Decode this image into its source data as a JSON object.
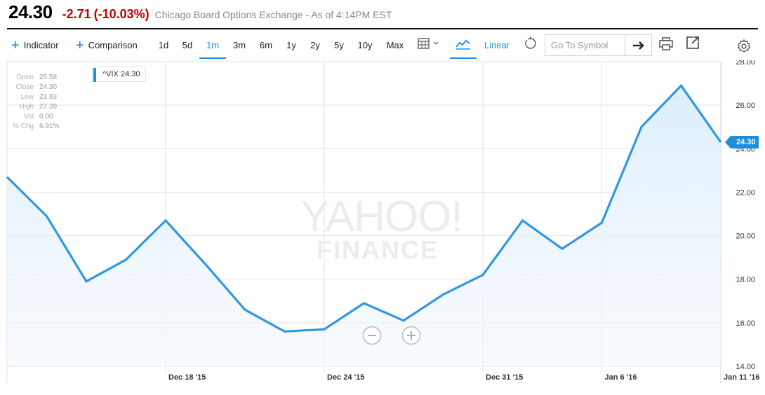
{
  "header": {
    "price": "24.30",
    "change": "-2.71",
    "change_pct": "(-10.03%)",
    "exchange": "Chicago Board Options Exchange - As of 4:14PM EST",
    "colors": {
      "negative": "#c00000",
      "price": "#000000"
    }
  },
  "toolbar": {
    "indicator_label": "Indicator",
    "comparison_label": "Comparison",
    "ranges": [
      "1d",
      "5d",
      "1m",
      "3m",
      "6m",
      "1y",
      "2y",
      "5y",
      "10y",
      "Max"
    ],
    "active_range": "1m",
    "scale_label": "Linear",
    "symbol_placeholder": "Go To Symbol",
    "icons": [
      "plus-icon",
      "calendar-icon",
      "chevron-down-icon",
      "line-chart-icon",
      "undo-icon",
      "arrow-right-icon",
      "print-icon",
      "external-link-icon",
      "gear-icon"
    ],
    "accent_color": "#1d8fdb"
  },
  "legend": {
    "label": "^VIX 24.30"
  },
  "ohlc": {
    "rows": [
      {
        "k": "Open",
        "v": "25.58"
      },
      {
        "k": "Close",
        "v": "24.30"
      },
      {
        "k": "Low",
        "v": "23.83"
      },
      {
        "k": "High",
        "v": "27.39"
      },
      {
        "k": "Vol",
        "v": "0.00"
      },
      {
        "k": "% Chg",
        "v": "6.91%"
      }
    ]
  },
  "watermark": {
    "line1": "YAHOO!",
    "line2": "FINANCE"
  },
  "last_price_tag": "24.30",
  "chart_data": {
    "type": "area",
    "series": [
      {
        "name": "^VIX",
        "color": "#2f98e0",
        "values": [
          22.7,
          20.9,
          17.9,
          18.9,
          20.7,
          18.7,
          16.6,
          15.6,
          15.7,
          16.9,
          16.1,
          17.3,
          18.2,
          20.7,
          19.4,
          20.6,
          25.0,
          26.9,
          24.3
        ]
      }
    ],
    "ylim": [
      14,
      28
    ],
    "y_ticks": [
      "14.00",
      "16.00",
      "18.00",
      "20.00",
      "22.00",
      "24.00",
      "26.00",
      "28.00"
    ],
    "x_ticks": [
      {
        "label": "Dec 18 '15",
        "index": 4
      },
      {
        "label": "Dec 24 '15",
        "index": 8
      },
      {
        "label": "Dec 31 '15",
        "index": 12
      },
      {
        "label": "Jan 6 '16",
        "index": 15
      },
      {
        "label": "Jan 11 '16",
        "index": 18
      }
    ],
    "y_axis": "right",
    "grid": true
  }
}
